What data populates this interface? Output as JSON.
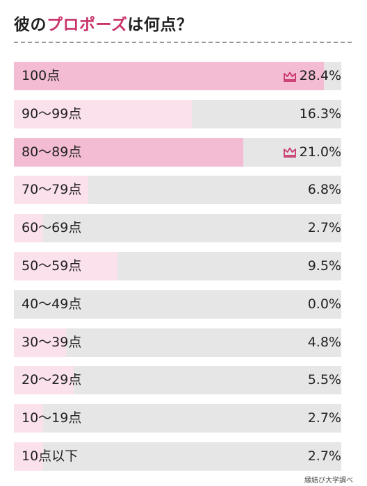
{
  "title": {
    "before": "彼の",
    "accent": "プロポーズ",
    "after": "は何点？"
  },
  "colors": {
    "accent": "#c8336b",
    "bar_highlight": "#f3bcd3",
    "bar_normal": "#fbe1ec",
    "track": "#e6e6e6"
  },
  "source": "縁結び大学調べ",
  "chart_data": {
    "type": "bar",
    "orientation": "horizontal",
    "categories": [
      "100点",
      "90〜99点",
      "80〜89点",
      "70〜79点",
      "60〜69点",
      "50〜59点",
      "40〜49点",
      "30〜39点",
      "20〜29点",
      "10〜19点",
      "10点以下"
    ],
    "values": [
      28.4,
      16.3,
      21.0,
      6.8,
      2.7,
      9.5,
      0.0,
      4.8,
      5.5,
      2.7,
      2.7
    ],
    "value_labels": [
      "28.4%",
      "16.3%",
      "21.0%",
      "6.8%",
      "2.7%",
      "9.5%",
      "0.0%",
      "4.8%",
      "5.5%",
      "2.7%",
      "2.7%"
    ],
    "xlim": [
      0,
      30
    ],
    "highlighted": [
      true,
      false,
      true,
      false,
      false,
      false,
      false,
      false,
      false,
      false,
      false
    ],
    "highlight_icon": "crown-icon"
  }
}
